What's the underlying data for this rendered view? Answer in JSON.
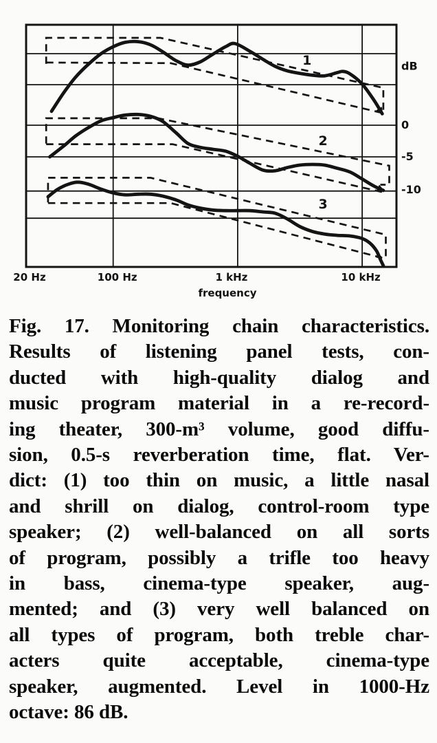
{
  "figure": {
    "caption_lines": [
      "Fig. 17. Monitoring chain characteristics.",
      "Results of listening panel tests, con-",
      "ducted with high-quality dialog and",
      "music program material in a re-record-",
      "ing theater, 300-m³ volume, good diffu-",
      "sion, 0.5-s reverberation time, flat. Ver-",
      "dict: (1) too thin on music, a little nasal",
      "and shrill on dialog, control-room type",
      "speaker; (2) well-balanced on all sorts",
      "of program, possibly a trifle too heavy",
      "in bass, cinema-type speaker, aug-",
      "mented; and (3) very well balanced on",
      "all types of program, both treble char-",
      "acters quite acceptable, cinema-type",
      "speaker, augmented. Level in 1000-Hz",
      "octave: 86 dB."
    ]
  },
  "chart_data": {
    "type": "line",
    "title": "Fig. 17. Monitoring chain characteristics.",
    "xlabel": "frequency",
    "ylabel": "dB",
    "x_scale": "log",
    "x_range_hz": [
      20,
      19000
    ],
    "ink_color": "#141414",
    "paper_color": "#fbfbfa",
    "grid": true,
    "x_ticks": [
      {
        "f": 20,
        "label": "20 Hz",
        "dx": 5
      },
      {
        "f": 100,
        "label": "100 Hz",
        "dx": 6
      },
      {
        "f": 1000,
        "label": "1 kHz",
        "dx": -9
      },
      {
        "f": 10000,
        "label": "10 kHz",
        "dx": -2
      }
    ],
    "right_labels": [
      {
        "db": 9.3,
        "label": "dB"
      },
      {
        "db": 0,
        "label": "0"
      },
      {
        "db": -5,
        "label": "-5"
      },
      {
        "db": -10.2,
        "label": "-10"
      }
    ],
    "h_gridlines_db": [
      11.3,
      6.4,
      0,
      -5,
      -10.4,
      -14.7
    ],
    "v_gridlines_f": [
      100,
      1000,
      10000
    ],
    "series": [
      {
        "label": "1",
        "name": "curve 1 (control-room type speaker)",
        "style": "solid",
        "arrow": true,
        "label_pos": {
          "f": 3600,
          "db": 10.3
        },
        "points": [
          [
            32,
            2.2
          ],
          [
            40,
            5.1
          ],
          [
            50,
            7.6
          ],
          [
            63,
            9.6
          ],
          [
            80,
            11.3
          ],
          [
            100,
            12.4
          ],
          [
            125,
            13.1
          ],
          [
            160,
            13.2
          ],
          [
            200,
            12.7
          ],
          [
            250,
            11.6
          ],
          [
            320,
            10.2
          ],
          [
            400,
            9.5
          ],
          [
            500,
            10.0
          ],
          [
            630,
            11.2
          ],
          [
            800,
            12.4
          ],
          [
            950,
            12.9
          ],
          [
            1250,
            11.7
          ],
          [
            1600,
            10.4
          ],
          [
            2000,
            9.3
          ],
          [
            2500,
            8.6
          ],
          [
            3150,
            8.2
          ],
          [
            4000,
            7.9
          ],
          [
            5000,
            7.8
          ],
          [
            6300,
            8.3
          ],
          [
            7000,
            8.5
          ],
          [
            8000,
            8.1
          ],
          [
            10000,
            6.5
          ],
          [
            12500,
            3.9
          ],
          [
            14500,
            1.8
          ]
        ]
      },
      {
        "label": "2",
        "name": "curve 2 (cinema-type speaker, augmented)",
        "style": "solid",
        "arrow": true,
        "label_pos": {
          "f": 4850,
          "db": -2.4
        },
        "points": [
          [
            31,
            -5.0
          ],
          [
            40,
            -3.3
          ],
          [
            50,
            -1.7
          ],
          [
            63,
            -0.4
          ],
          [
            80,
            0.7
          ],
          [
            100,
            1.2
          ],
          [
            125,
            1.6
          ],
          [
            160,
            1.7
          ],
          [
            200,
            1.4
          ],
          [
            250,
            0.6
          ],
          [
            320,
            -1.2
          ],
          [
            400,
            -2.9
          ],
          [
            500,
            -3.5
          ],
          [
            630,
            -3.8
          ],
          [
            800,
            -4.1
          ],
          [
            1000,
            -4.9
          ],
          [
            1250,
            -6.0
          ],
          [
            1600,
            -7.1
          ],
          [
            2000,
            -7.2
          ],
          [
            2500,
            -6.7
          ],
          [
            3150,
            -6.3
          ],
          [
            4000,
            -6.2
          ],
          [
            5000,
            -6.3
          ],
          [
            6300,
            -6.8
          ],
          [
            8000,
            -7.4
          ],
          [
            10000,
            -8.5
          ],
          [
            12400,
            -9.6
          ],
          [
            14800,
            -10.3
          ]
        ]
      },
      {
        "label": "3",
        "name": "curve 3 (cinema-type speaker, augmented)",
        "style": "solid",
        "arrow": false,
        "label_pos": {
          "f": 4850,
          "db": -12.4
        },
        "points": [
          [
            30,
            -11.3
          ],
          [
            36,
            -10.1
          ],
          [
            44,
            -9.3
          ],
          [
            52,
            -9.0
          ],
          [
            63,
            -9.3
          ],
          [
            80,
            -10.1
          ],
          [
            100,
            -10.7
          ],
          [
            125,
            -11.0
          ],
          [
            160,
            -10.9
          ],
          [
            200,
            -10.9
          ],
          [
            250,
            -11.2
          ],
          [
            320,
            -11.8
          ],
          [
            400,
            -12.6
          ],
          [
            500,
            -13.1
          ],
          [
            630,
            -13.4
          ],
          [
            800,
            -13.5
          ],
          [
            1000,
            -13.5
          ],
          [
            1250,
            -13.5
          ],
          [
            1600,
            -13.7
          ],
          [
            2000,
            -13.9
          ],
          [
            2500,
            -14.8
          ],
          [
            3150,
            -16.0
          ],
          [
            4000,
            -16.8
          ],
          [
            5000,
            -17.2
          ],
          [
            6300,
            -17.4
          ],
          [
            8000,
            -17.5
          ],
          [
            10000,
            -17.9
          ],
          [
            11500,
            -18.6
          ],
          [
            13000,
            -19.8
          ],
          [
            14000,
            -21.2
          ],
          [
            14800,
            -22.2
          ]
        ]
      }
    ],
    "tolerance_corridors": [
      {
        "for": "1",
        "upper": [
          [
            29,
            9.7
          ],
          [
            29,
            13.8
          ],
          [
            240,
            13.8
          ],
          [
            14800,
            5.9
          ],
          [
            14800,
            2.3
          ],
          [
            13200,
            2.2
          ]
        ],
        "lower": [
          [
            29,
            9.9
          ],
          [
            290,
            9.8
          ],
          [
            14800,
            1.9
          ]
        ]
      },
      {
        "for": "2",
        "upper": [
          [
            29,
            -2.9
          ],
          [
            29,
            1.1
          ],
          [
            230,
            1.1
          ],
          [
            16500,
            -6.4
          ],
          [
            16500,
            -9.4
          ],
          [
            14000,
            -9.4
          ]
        ],
        "lower": [
          [
            29,
            -3.0
          ],
          [
            300,
            -3.0
          ],
          [
            14800,
            -10.6
          ]
        ]
      },
      {
        "for": "3",
        "upper": [
          [
            30,
            -12.2
          ],
          [
            30,
            -8.3
          ],
          [
            200,
            -8.3
          ],
          [
            15500,
            -17.3
          ],
          [
            15500,
            -20.8
          ],
          [
            13000,
            -20.8
          ]
        ],
        "lower": [
          [
            30,
            -12.3
          ],
          [
            290,
            -12.3
          ],
          [
            14800,
            -21.0
          ]
        ]
      }
    ]
  }
}
